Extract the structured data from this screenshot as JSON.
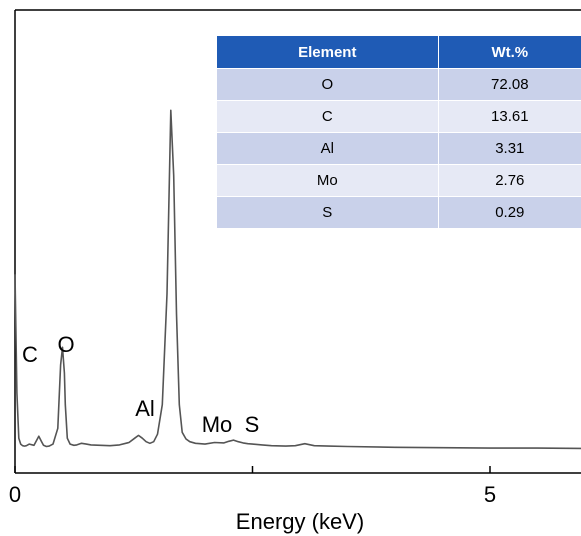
{
  "chart_data": {
    "type": "line",
    "title": "",
    "xlabel": "Energy (keV)",
    "ylabel": "",
    "xlim": [
      0,
      6.0
    ],
    "ylim": [
      0,
      100
    ],
    "x_ticks": [
      {
        "value": 0,
        "label": "0"
      },
      {
        "value": 2.5,
        "label": ""
      },
      {
        "value": 5,
        "label": "5"
      }
    ],
    "grid": false,
    "legend": "none",
    "series": [
      {
        "color": "#555555",
        "x": [
          0.0,
          0.02,
          0.04,
          0.06,
          0.08,
          0.1,
          0.12,
          0.15,
          0.2,
          0.25,
          0.28,
          0.3,
          0.33,
          0.36,
          0.4,
          0.45,
          0.48,
          0.5,
          0.52,
          0.53,
          0.55,
          0.58,
          0.62,
          0.65,
          0.7,
          0.75,
          0.8,
          0.9,
          1.0,
          1.1,
          1.2,
          1.26,
          1.3,
          1.34,
          1.38,
          1.42,
          1.46,
          1.5,
          1.55,
          1.6,
          1.64,
          1.67,
          1.7,
          1.73,
          1.76,
          1.8,
          1.84,
          1.9,
          2.0,
          2.1,
          2.2,
          2.25,
          2.3,
          2.35,
          2.4,
          2.45,
          2.5,
          2.6,
          2.7,
          2.85,
          2.95,
          3.05,
          3.15,
          3.3,
          3.5,
          4.0,
          4.5,
          5.0,
          5.5,
          6.0
        ],
        "y": [
          45,
          15,
          3.5,
          2.0,
          1.6,
          1.5,
          1.6,
          2.0,
          1.7,
          4.0,
          2.6,
          1.7,
          1.4,
          1.5,
          2.0,
          6.0,
          22.0,
          26.5,
          20.0,
          12.0,
          3.5,
          2.0,
          1.7,
          1.8,
          2.2,
          2.0,
          1.8,
          1.7,
          1.6,
          1.8,
          2.4,
          3.5,
          4.2,
          3.5,
          2.6,
          2.2,
          2.6,
          4.5,
          12.0,
          40.0,
          86.5,
          70.0,
          35.0,
          12.0,
          5.0,
          3.3,
          2.6,
          2.2,
          2.0,
          2.4,
          2.3,
          2.7,
          3.0,
          2.6,
          2.3,
          2.1,
          2.0,
          1.8,
          1.6,
          1.5,
          1.6,
          2.1,
          1.6,
          1.5,
          1.4,
          1.2,
          1.1,
          1.0,
          1.0,
          0.9
        ]
      }
    ],
    "annotations": [
      {
        "text": "C",
        "x": 0.28,
        "y": 11
      },
      {
        "text": "O",
        "x": 0.52,
        "y": 12
      },
      {
        "text": "Al",
        "x": 1.3,
        "y": 6
      },
      {
        "text": "Mo",
        "x": 2.05,
        "y": 3
      },
      {
        "text": "S",
        "x": 2.45,
        "y": 2
      }
    ],
    "table": {
      "headers": [
        "Element",
        "Wt.%"
      ],
      "rows": [
        [
          "O",
          "72.08"
        ],
        [
          "C",
          "13.61"
        ],
        [
          "Al",
          "3.31"
        ],
        [
          "Mo",
          "2.76"
        ],
        [
          "S",
          "0.29"
        ]
      ]
    }
  }
}
